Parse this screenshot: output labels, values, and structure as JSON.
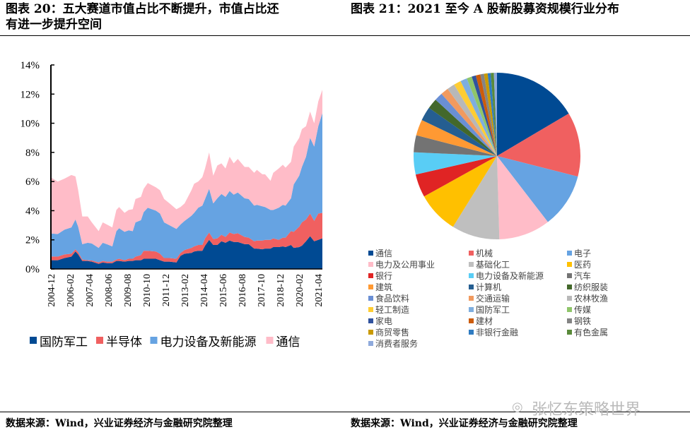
{
  "left": {
    "title": "图表 20：五大赛道市值占比不断提升，市值占比还有进一步提升空间",
    "title_line1": "图表 20：五大赛道市值占比不断提升，市值占比还",
    "title_line2": "有进一步提升空间",
    "source": "数据来源：Wind，兴业证券经济与金融研究院整理"
  },
  "right": {
    "title": "图表 21：2021 至今 A 股新股募资规模行业分布",
    "source": "数据来源：Wind，兴业证券经济与金融研究院整理"
  },
  "watermark": "张忆东策略世界",
  "chart_data": [
    {
      "type": "area",
      "stacked": true,
      "yticks": [
        "0%",
        "2%",
        "4%",
        "6%",
        "8%",
        "10%",
        "12%",
        "14%"
      ],
      "ylim": [
        0,
        14
      ],
      "xticks": [
        "2004-12",
        "2006-02",
        "2007-04",
        "2008-06",
        "2009-08",
        "2010-10",
        "2011-12",
        "2013-02",
        "2014-04",
        "2015-06",
        "2016-08",
        "2017-10",
        "2018-12",
        "2020-02",
        "2021-04"
      ],
      "legend_position": "bottom",
      "x": [
        "2004-12",
        "2005-05",
        "2005-10",
        "2006-03",
        "2006-06",
        "2006-08",
        "2006-11",
        "2007-03",
        "2007-06",
        "2007-11",
        "2008-02",
        "2008-05",
        "2008-09",
        "2008-12",
        "2009-02",
        "2009-06",
        "2009-09",
        "2009-12",
        "2010-02",
        "2010-06",
        "2010-08",
        "2010-11",
        "2011-05",
        "2011-08",
        "2011-11",
        "2012-03",
        "2012-08",
        "2012-11",
        "2013-02",
        "2013-07",
        "2013-09",
        "2013-12",
        "2014-03",
        "2014-05",
        "2014-08",
        "2014-11",
        "2015-02",
        "2015-05",
        "2015-08",
        "2015-11",
        "2016-02",
        "2016-05",
        "2016-10",
        "2017-01",
        "2017-05",
        "2017-07",
        "2017-11",
        "2018-01",
        "2018-05",
        "2018-07",
        "2018-11",
        "2019-02",
        "2019-04",
        "2019-08",
        "2019-10",
        "2020-02",
        "2020-04",
        "2020-07",
        "2020-10",
        "2021-01",
        "2021-04",
        "2021-07"
      ],
      "series": [
        {
          "name": "国防军工",
          "color": "#004a93",
          "values": [
            0.6,
            0.6,
            0.75,
            0.85,
            1.2,
            1.0,
            0.55,
            0.55,
            0.5,
            0.35,
            0.45,
            0.4,
            0.4,
            0.55,
            0.55,
            0.5,
            0.55,
            0.55,
            0.6,
            0.6,
            0.7,
            0.7,
            0.7,
            0.6,
            0.5,
            0.5,
            0.45,
            0.9,
            1.05,
            1.1,
            1.2,
            1.25,
            1.25,
            1.6,
            2.0,
            1.65,
            1.65,
            1.9,
            1.8,
            1.95,
            1.85,
            1.85,
            1.7,
            1.7,
            1.4,
            1.4,
            1.35,
            1.4,
            1.4,
            1.5,
            1.5,
            1.55,
            1.5,
            1.65,
            1.45,
            1.5,
            1.6,
            1.9,
            2.25,
            1.9,
            2.0,
            2.1
          ]
        },
        {
          "name": "半导体",
          "color": "#f06060",
          "values": [
            0.26,
            0.25,
            0.25,
            0.2,
            0.15,
            0.15,
            0.1,
            0.05,
            0.08,
            0.1,
            0.1,
            0.1,
            0.1,
            0.1,
            0.15,
            0.1,
            0.15,
            0.15,
            0.25,
            0.35,
            0.55,
            0.55,
            0.5,
            0.45,
            0.25,
            0.25,
            0.25,
            0.2,
            0.25,
            0.35,
            0.35,
            0.4,
            0.4,
            0.5,
            0.5,
            0.4,
            0.45,
            0.45,
            0.4,
            0.55,
            0.55,
            0.6,
            0.5,
            0.45,
            0.5,
            0.55,
            0.6,
            0.6,
            0.6,
            0.6,
            0.5,
            0.6,
            0.65,
            0.95,
            1.1,
            1.4,
            1.6,
            1.5,
            1.55,
            1.4,
            1.8,
            1.75
          ]
        },
        {
          "name": "电力设备及新能源",
          "color": "#66a3e2",
          "values": [
            1.58,
            1.55,
            1.7,
            1.8,
            2.05,
            1.75,
            1.05,
            1.2,
            1.17,
            1.0,
            1.25,
            1.2,
            1.05,
            1.95,
            2.1,
            1.95,
            1.95,
            1.9,
            2.35,
            2.4,
            2.65,
            2.95,
            2.8,
            2.75,
            2.45,
            2.25,
            2.05,
            1.95,
            2.0,
            2.2,
            2.3,
            2.55,
            2.7,
            2.7,
            3.0,
            2.45,
            2.75,
            2.8,
            2.75,
            2.85,
            2.7,
            2.8,
            2.65,
            2.65,
            2.45,
            2.45,
            2.35,
            2.25,
            2.05,
            1.95,
            2.2,
            2.25,
            2.2,
            2.25,
            3.25,
            3.5,
            3.8,
            4.3,
            5.2,
            5.1,
            6.0,
            6.85
          ]
        },
        {
          "name": "通信",
          "color": "#ffbcc8",
          "values": [
            3.84,
            3.6,
            3.5,
            3.6,
            2.95,
            2.5,
            1.9,
            1.8,
            1.45,
            1.15,
            1.4,
            1.35,
            1.3,
            1.45,
            1.45,
            1.3,
            1.4,
            1.5,
            1.6,
            1.6,
            1.6,
            1.7,
            1.6,
            1.6,
            1.6,
            1.5,
            1.35,
            1.2,
            1.2,
            1.75,
            2.0,
            1.8,
            1.95,
            2.1,
            2.5,
            1.9,
            2.25,
            2.1,
            1.95,
            2.35,
            2.15,
            2.3,
            2.15,
            2.2,
            2.25,
            2.4,
            2.2,
            2.25,
            2.0,
            2.55,
            2.7,
            2.75,
            2.6,
            2.5,
            2.6,
            2.6,
            2.6,
            2.1,
            1.8,
            1.6,
            1.7,
            1.6
          ]
        }
      ]
    },
    {
      "type": "pie",
      "legend_position": "bottom",
      "slices": [
        {
          "label": "通信",
          "value": 16.5,
          "color": "#004a93"
        },
        {
          "label": "机械",
          "value": 12.5,
          "color": "#f06060"
        },
        {
          "label": "电子",
          "value": 10.6,
          "color": "#66a3e2"
        },
        {
          "label": "电力及公用事业",
          "value": 10.0,
          "color": "#ffbcc8"
        },
        {
          "label": "基础化工",
          "value": 9.3,
          "color": "#bfbfbf"
        },
        {
          "label": "医药",
          "value": 8.1,
          "color": "#ffc000"
        },
        {
          "label": "银行",
          "value": 4.5,
          "color": "#e02424"
        },
        {
          "label": "电力设备及新能源",
          "value": 4.3,
          "color": "#59cdf5"
        },
        {
          "label": "汽车",
          "value": 3.3,
          "color": "#737373"
        },
        {
          "label": "建筑",
          "value": 3.1,
          "color": "#ff9933"
        },
        {
          "label": "计算机",
          "value": 2.7,
          "color": "#255e91"
        },
        {
          "label": "纺织服装",
          "value": 2.0,
          "color": "#43682b"
        },
        {
          "label": "食品饮料",
          "value": 1.6,
          "color": "#6a8fd4"
        },
        {
          "label": "交通运输",
          "value": 1.5,
          "color": "#f19a5f"
        },
        {
          "label": "农林牧渔",
          "value": 1.5,
          "color": "#b8b8b8"
        },
        {
          "label": "轻工制造",
          "value": 1.4,
          "color": "#ffcd33"
        },
        {
          "label": "国防军工",
          "value": 1.3,
          "color": "#7eaedf"
        },
        {
          "label": "传媒",
          "value": 1.0,
          "color": "#8fc56a"
        },
        {
          "label": "家电",
          "value": 0.8,
          "color": "#30529e"
        },
        {
          "label": "建材",
          "value": 0.9,
          "color": "#cc5c0c"
        },
        {
          "label": "钢铁",
          "value": 0.7,
          "color": "#848484"
        },
        {
          "label": "商贸零售",
          "value": 0.7,
          "color": "#c99a00"
        },
        {
          "label": "非银行金融",
          "value": 0.6,
          "color": "#2f7cc2"
        },
        {
          "label": "有色金属",
          "value": 0.6,
          "color": "#5a8a3a"
        },
        {
          "label": "消费者服务",
          "value": 0.6,
          "color": "#8faadc"
        }
      ]
    }
  ]
}
